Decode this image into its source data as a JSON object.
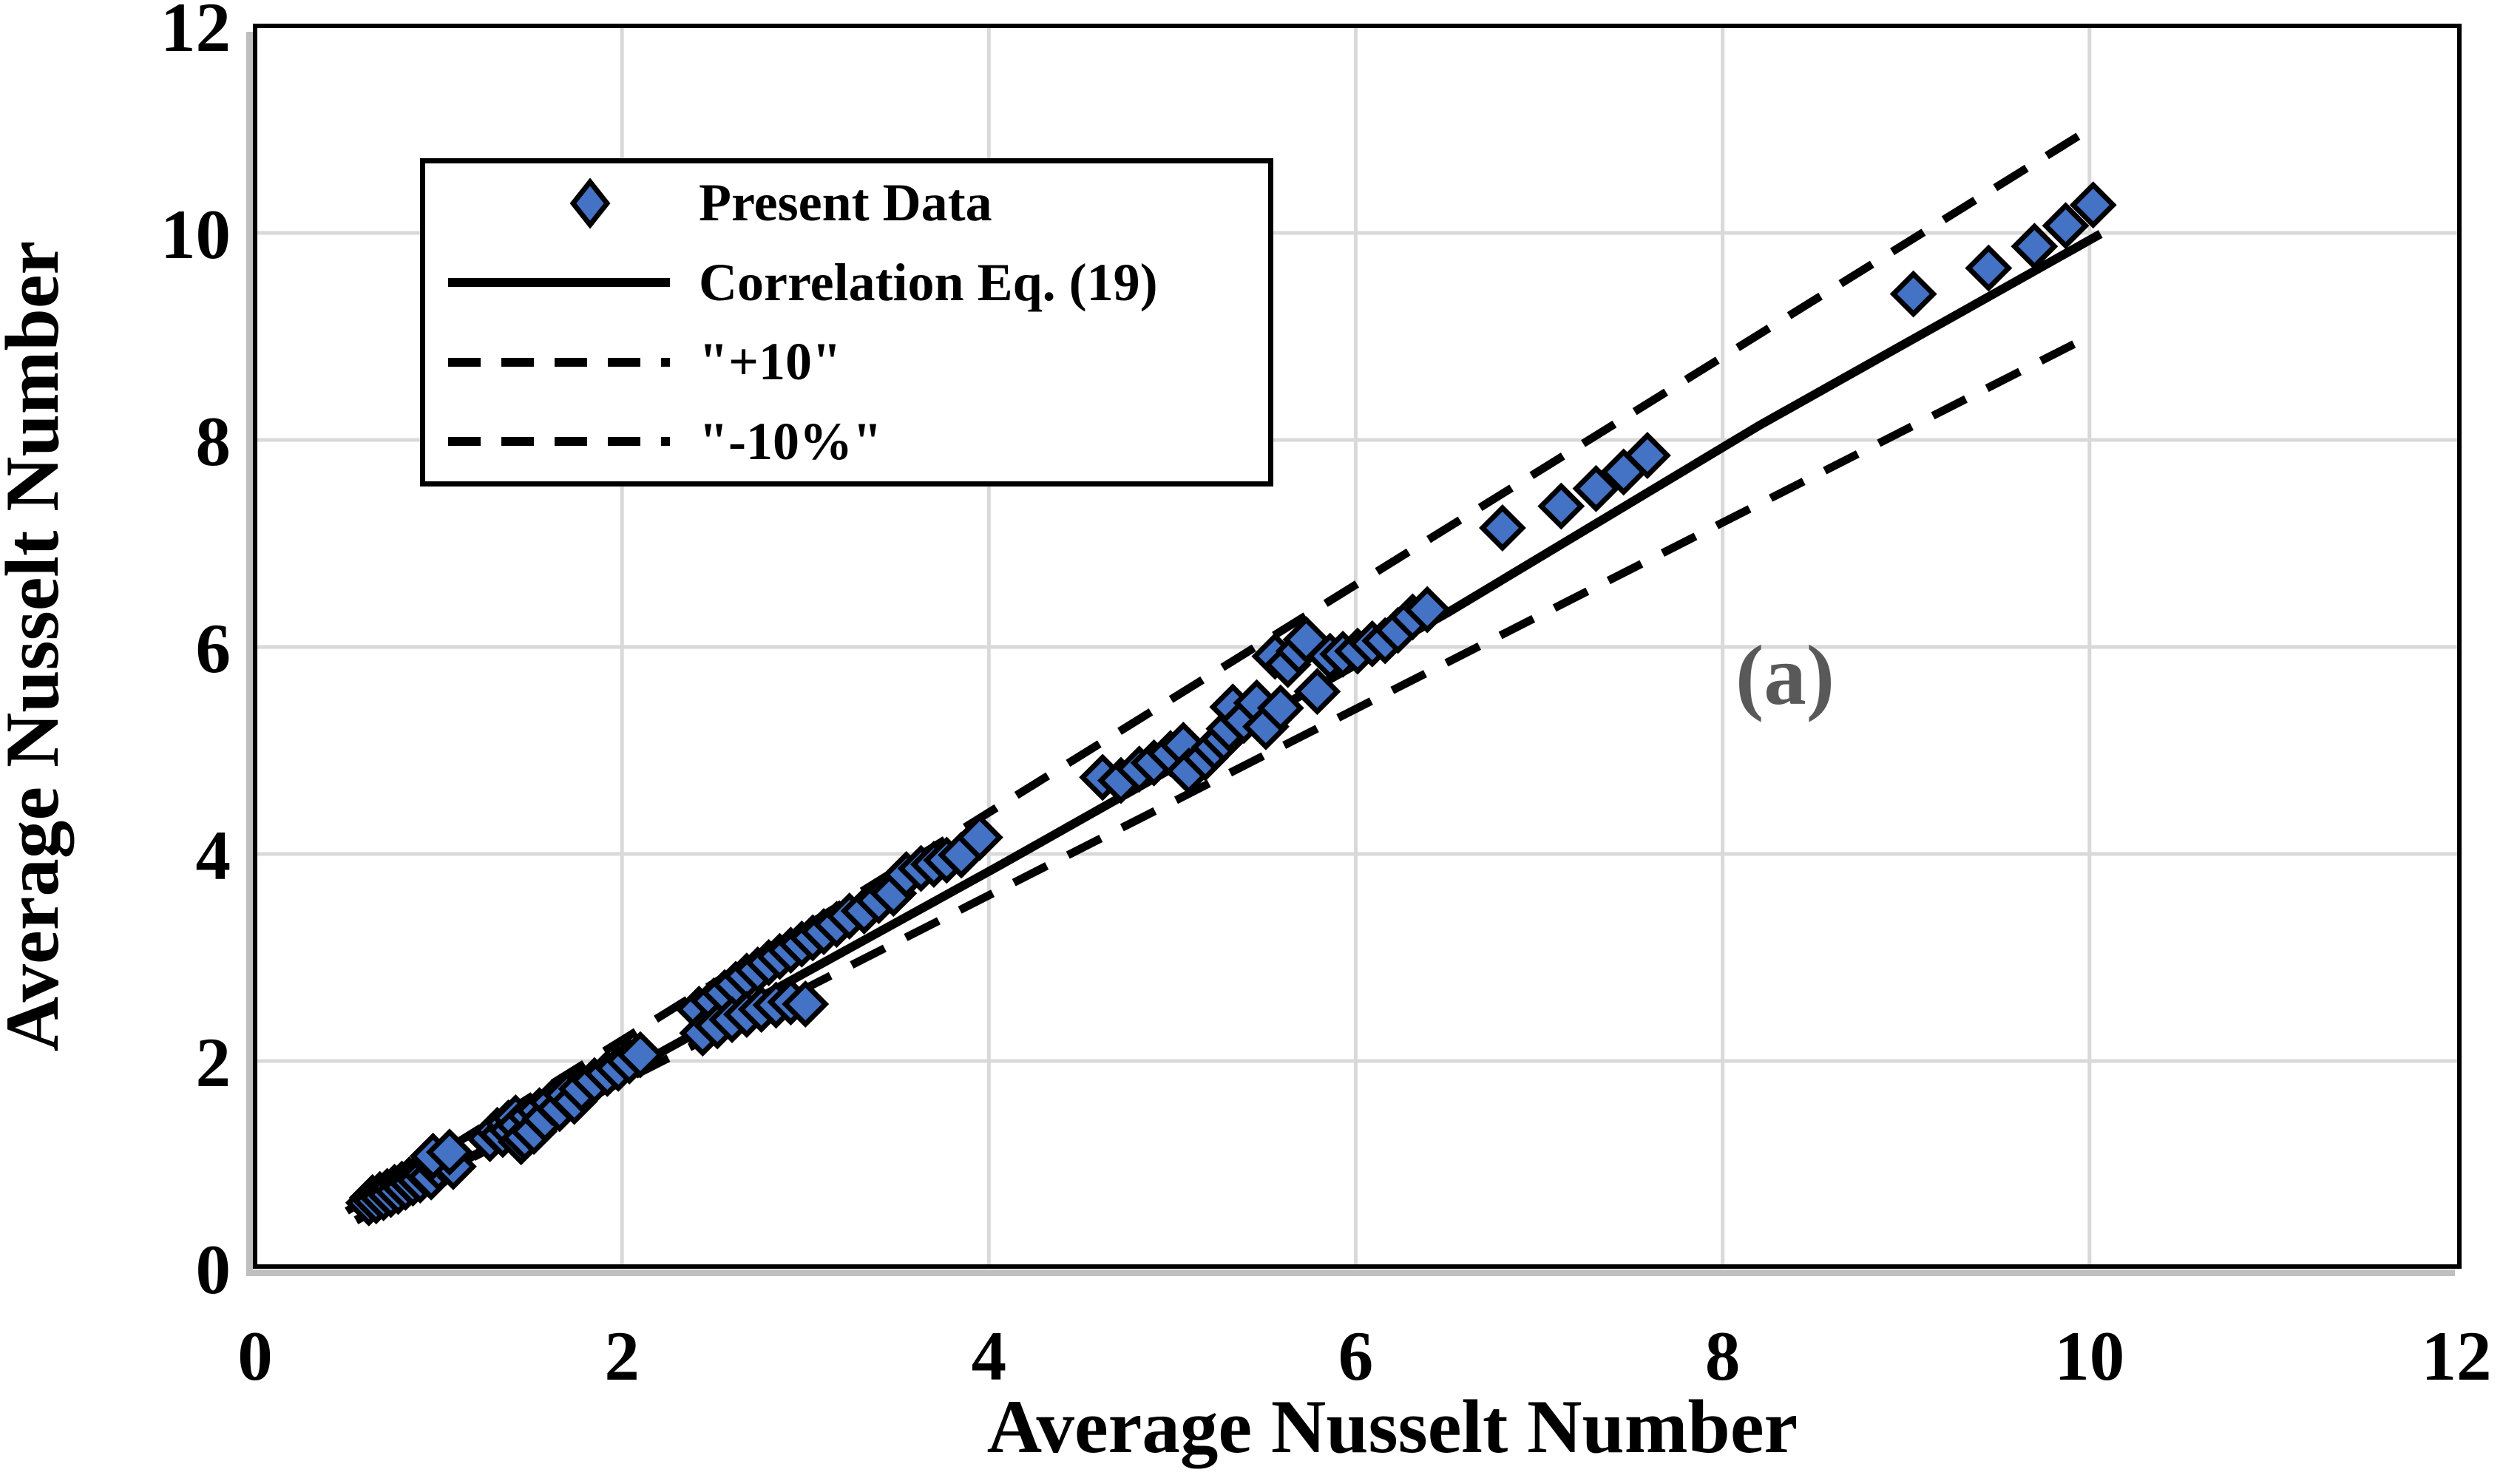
{
  "figure": {
    "panel_label": "(a)"
  },
  "colors": {
    "marker_fill": "#4472C4",
    "marker_outline": "#000000",
    "line": "#000000",
    "grid": "#D9D9D9",
    "axis_shadow": "#BFBFBF",
    "annotation": "#595959",
    "background": "#FFFFFF"
  },
  "chart_data": {
    "type": "scatter",
    "title": "",
    "xlabel": "Average Nusselt Number",
    "ylabel": "Average Nusselt Number",
    "xlim": [
      0,
      12
    ],
    "ylim": [
      0,
      12
    ],
    "xticks": [
      0,
      2,
      4,
      6,
      8,
      10,
      12
    ],
    "yticks": [
      0,
      2,
      4,
      6,
      8,
      10,
      12
    ],
    "grid": true,
    "legend_position": "upper-left",
    "annotations": [
      {
        "text": "(a)",
        "x": 8.34,
        "y": 5.45
      }
    ],
    "series": [
      {
        "name": "Present Data",
        "kind": "scatter",
        "marker": "diamond",
        "fill": "#4472C4",
        "outline": "#000000",
        "points": [
          [
            0.62,
            0.63
          ],
          [
            0.64,
            0.68
          ],
          [
            0.66,
            0.65
          ],
          [
            0.68,
            0.71
          ],
          [
            0.7,
            0.68
          ],
          [
            0.72,
            0.74
          ],
          [
            0.74,
            0.71
          ],
          [
            0.76,
            0.78
          ],
          [
            0.78,
            0.74
          ],
          [
            0.8,
            0.81
          ],
          [
            0.82,
            0.78
          ],
          [
            0.84,
            0.85
          ],
          [
            0.86,
            0.82
          ],
          [
            0.88,
            0.88
          ],
          [
            0.9,
            0.85
          ],
          [
            0.93,
            0.91
          ],
          [
            0.96,
            0.88
          ],
          [
            1.0,
            0.97
          ],
          [
            1.04,
            1.02
          ],
          [
            1.08,
            0.98
          ],
          [
            0.97,
            1.08
          ],
          [
            1.06,
            1.12
          ],
          [
            1.28,
            1.25
          ],
          [
            1.32,
            1.33
          ],
          [
            1.35,
            1.29
          ],
          [
            1.38,
            1.4
          ],
          [
            1.4,
            1.33
          ],
          [
            1.42,
            1.45
          ],
          [
            1.44,
            1.38
          ],
          [
            1.45,
            1.22
          ],
          [
            1.47,
            1.26
          ],
          [
            1.5,
            1.47
          ],
          [
            1.52,
            1.32
          ],
          [
            1.55,
            1.52
          ],
          [
            1.58,
            1.44
          ],
          [
            1.62,
            1.6
          ],
          [
            1.66,
            1.54
          ],
          [
            1.7,
            1.67
          ],
          [
            1.74,
            1.61
          ],
          [
            1.78,
            1.73
          ],
          [
            1.85,
            1.81
          ],
          [
            1.92,
            1.88
          ],
          [
            1.98,
            1.93
          ],
          [
            2.04,
            2.0
          ],
          [
            2.1,
            2.06
          ],
          [
            2.42,
            2.5
          ],
          [
            2.5,
            2.58
          ],
          [
            2.56,
            2.66
          ],
          [
            2.62,
            2.74
          ],
          [
            2.68,
            2.82
          ],
          [
            2.74,
            2.88
          ],
          [
            2.8,
            2.95
          ],
          [
            2.86,
            3.01
          ],
          [
            2.92,
            3.07
          ],
          [
            2.98,
            3.13
          ],
          [
            3.04,
            3.19
          ],
          [
            3.1,
            3.25
          ],
          [
            3.17,
            3.32
          ],
          [
            3.24,
            3.4
          ],
          [
            2.44,
            2.27
          ],
          [
            2.52,
            2.34
          ],
          [
            2.6,
            2.4
          ],
          [
            2.68,
            2.45
          ],
          [
            2.76,
            2.5
          ],
          [
            2.84,
            2.54
          ],
          [
            2.92,
            2.57
          ],
          [
            3.0,
            2.55
          ],
          [
            3.32,
            3.45
          ],
          [
            3.4,
            3.55
          ],
          [
            3.48,
            3.62
          ],
          [
            3.55,
            3.8
          ],
          [
            3.63,
            3.86
          ],
          [
            3.7,
            3.9
          ],
          [
            3.77,
            3.94
          ],
          [
            3.85,
            3.99
          ],
          [
            3.95,
            4.16
          ],
          [
            4.62,
            4.74
          ],
          [
            4.72,
            4.71
          ],
          [
            4.82,
            4.82
          ],
          [
            4.9,
            4.88
          ],
          [
            4.99,
            4.97
          ],
          [
            5.06,
            5.05
          ],
          [
            5.09,
            4.8
          ],
          [
            5.18,
            4.93
          ],
          [
            5.23,
            5.03
          ],
          [
            5.28,
            5.11
          ],
          [
            5.31,
            5.21
          ],
          [
            5.33,
            5.42
          ],
          [
            5.39,
            5.29
          ],
          [
            5.46,
            5.46
          ],
          [
            5.51,
            5.23
          ],
          [
            5.56,
            5.91
          ],
          [
            5.59,
            5.41
          ],
          [
            5.63,
            5.83
          ],
          [
            5.69,
            5.96
          ],
          [
            5.73,
            6.07
          ],
          [
            5.79,
            5.57
          ],
          [
            5.86,
            5.91
          ],
          [
            5.93,
            5.93
          ],
          [
            6.01,
            5.96
          ],
          [
            6.09,
            6.03
          ],
          [
            6.16,
            6.06
          ],
          [
            6.23,
            6.16
          ],
          [
            6.31,
            6.29
          ],
          [
            6.39,
            6.36
          ],
          [
            6.8,
            7.15
          ],
          [
            7.12,
            7.36
          ],
          [
            7.31,
            7.53
          ],
          [
            7.46,
            7.69
          ],
          [
            7.59,
            7.85
          ],
          [
            9.04,
            9.41
          ],
          [
            9.45,
            9.66
          ],
          [
            9.7,
            9.87
          ],
          [
            9.87,
            10.07
          ],
          [
            10.02,
            10.27
          ]
        ]
      },
      {
        "name": "Correlation Eq. (19)",
        "kind": "line",
        "style": "solid",
        "color": "#000000",
        "points": [
          [
            0.55,
            0.46
          ],
          [
            4.05,
            3.88
          ],
          [
            6.5,
            6.33
          ],
          [
            8.2,
            8.14
          ],
          [
            10.06,
            9.99
          ]
        ]
      },
      {
        "name": "\"+10\"",
        "kind": "line",
        "style": "dashed",
        "color": "#000000",
        "points": [
          [
            0.5,
            0.55
          ],
          [
            9.98,
            10.98
          ]
        ]
      },
      {
        "name": "\"-10%\"",
        "kind": "line",
        "style": "dashed",
        "color": "#000000",
        "points": [
          [
            0.6,
            0.54
          ],
          [
            10.02,
            9.02
          ]
        ]
      }
    ]
  }
}
